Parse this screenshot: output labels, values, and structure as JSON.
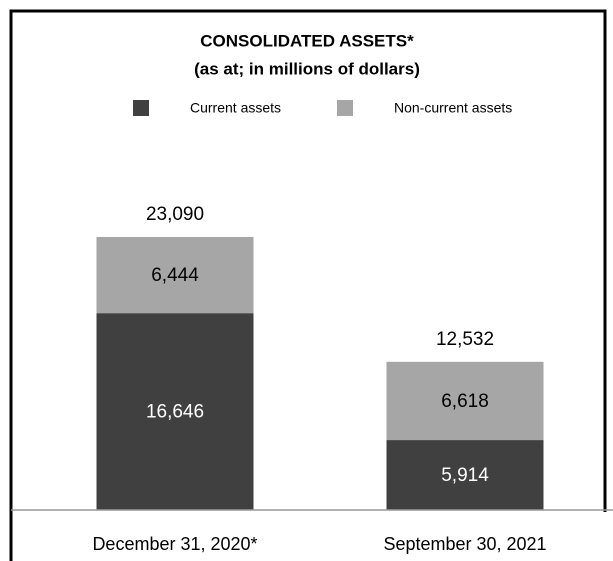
{
  "chart_data": {
    "type": "stacked_bar",
    "title": "CONSOLIDATED ASSETS*",
    "subtitle": "(as at; in millions of dollars)",
    "categories": [
      "December 31, 2020*",
      "September 30, 2021"
    ],
    "series": [
      {
        "name": "Current assets",
        "color": "#404040",
        "values": [
          16646,
          5914
        ],
        "value_labels": [
          "16,646",
          "5,914"
        ]
      },
      {
        "name": "Non-current assets",
        "color": "#a6a6a6",
        "values": [
          6444,
          6618
        ],
        "value_labels": [
          "6,444",
          "6,618"
        ]
      }
    ],
    "totals": [
      23090,
      12532
    ],
    "total_labels": [
      "23,090",
      "12,532"
    ],
    "ylim": [
      0,
      40000
    ]
  }
}
